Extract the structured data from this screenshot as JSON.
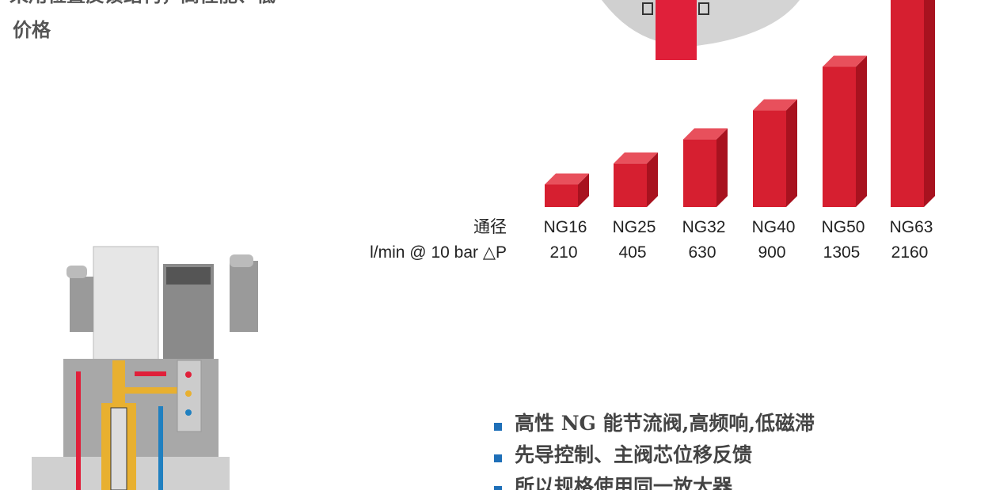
{
  "intro": [
    "采用位置反馈结构，高性能、低",
    "价格"
  ],
  "flow_table": {
    "row_labels": [
      "通径",
      "l/min @ 10 bar △P"
    ],
    "sizes": [
      "NG16",
      "NG25",
      "NG32",
      "NG40",
      "NG50",
      "NG63"
    ],
    "flows": [
      210,
      405,
      630,
      900,
      1305,
      2160
    ]
  },
  "bullets": [
    "高性 NG 能节流阀,高频响,低磁滞",
    "先导控制、主阀芯位移反馈",
    "所以规格使用同一放大器"
  ]
}
